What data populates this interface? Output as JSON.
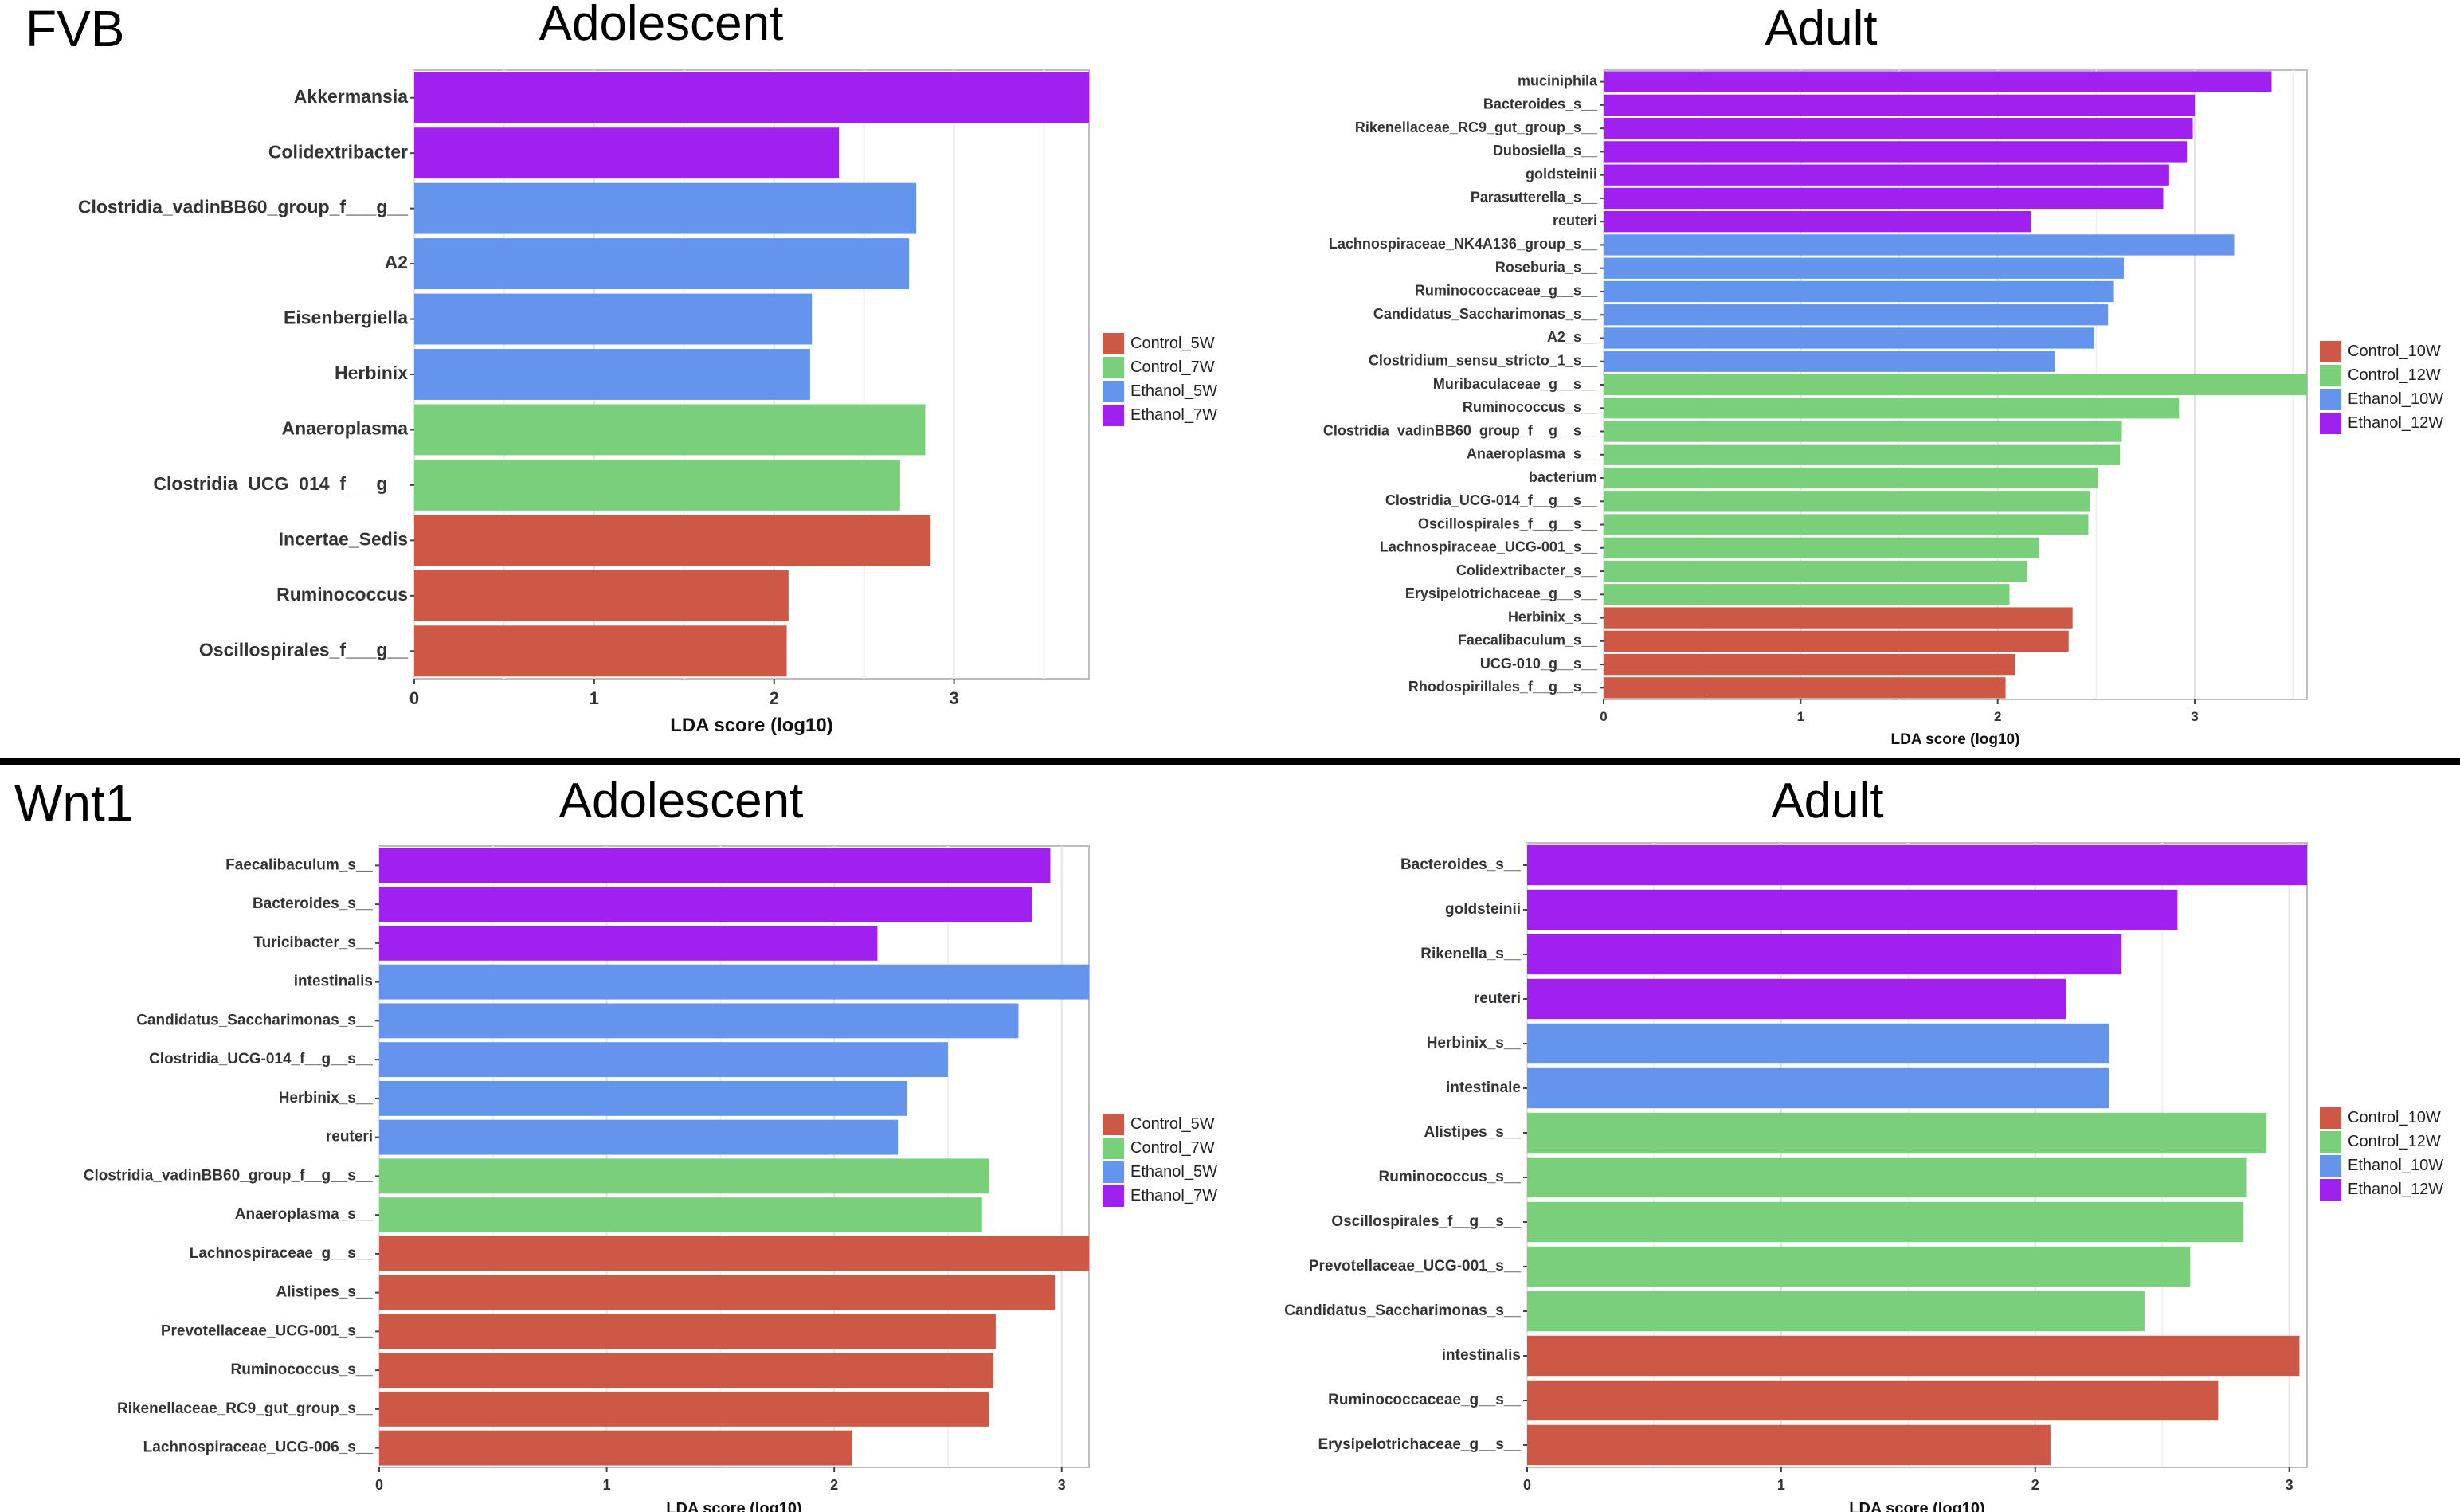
{
  "figure": {
    "groups": [
      {
        "label": "FVB"
      },
      {
        "label": "Wnt1"
      }
    ]
  },
  "chart_data": [
    {
      "type": "bar",
      "orientation": "horizontal",
      "group": "FVB",
      "title": "Adolescent",
      "xlabel": "LDA score (log10)",
      "xlim": [
        0,
        3.75
      ],
      "xticks": [
        "0",
        "1",
        "2",
        "3"
      ],
      "legend": {
        "placement": "right",
        "entries": [
          {
            "name": "Control_5W",
            "color": "#cd5845"
          },
          {
            "name": "Control_7W",
            "color": "#7acf7a"
          },
          {
            "name": "Ethanol_5W",
            "color": "#6495ed"
          },
          {
            "name": "Ethanol_7W",
            "color": "#a020f0"
          }
        ]
      },
      "bars": [
        {
          "label": "Akkermansia",
          "value": 3.75,
          "group": "Ethanol_7W"
        },
        {
          "label": "Colidextribacter",
          "value": 2.36,
          "group": "Ethanol_7W"
        },
        {
          "label": "Clostridia_vadinBB60_group_f___g__",
          "value": 2.79,
          "group": "Ethanol_5W"
        },
        {
          "label": "A2",
          "value": 2.75,
          "group": "Ethanol_5W"
        },
        {
          "label": "Eisenbergiella",
          "value": 2.21,
          "group": "Ethanol_5W"
        },
        {
          "label": "Herbinix",
          "value": 2.2,
          "group": "Ethanol_5W"
        },
        {
          "label": "Anaeroplasma",
          "value": 2.84,
          "group": "Control_7W"
        },
        {
          "label": "Clostridia_UCG_014_f___g__",
          "value": 2.7,
          "group": "Control_7W"
        },
        {
          "label": "Incertae_Sedis",
          "value": 2.87,
          "group": "Control_5W"
        },
        {
          "label": "Ruminococcus",
          "value": 2.08,
          "group": "Control_5W"
        },
        {
          "label": "Oscillospirales_f___g__",
          "value": 2.07,
          "group": "Control_5W"
        }
      ]
    },
    {
      "type": "bar",
      "orientation": "horizontal",
      "group": "FVB",
      "title": "Adult",
      "xlabel": "LDA score (log10)",
      "xlim": [
        0,
        3.57
      ],
      "xticks": [
        "0",
        "1",
        "2",
        "3"
      ],
      "legend": {
        "placement": "right",
        "entries": [
          {
            "name": "Control_10W",
            "color": "#cd5845"
          },
          {
            "name": "Control_12W",
            "color": "#7acf7a"
          },
          {
            "name": "Ethanol_10W",
            "color": "#6495ed"
          },
          {
            "name": "Ethanol_12W",
            "color": "#a020f0"
          }
        ]
      },
      "bars": [
        {
          "label": "muciniphila",
          "value": 3.39,
          "group": "Ethanol_12W"
        },
        {
          "label": "Bacteroides_s__",
          "value": 3.0,
          "group": "Ethanol_12W"
        },
        {
          "label": "Rikenellaceae_RC9_gut_group_s__",
          "value": 2.99,
          "group": "Ethanol_12W"
        },
        {
          "label": "Dubosiella_s__",
          "value": 2.96,
          "group": "Ethanol_12W"
        },
        {
          "label": "goldsteinii",
          "value": 2.87,
          "group": "Ethanol_12W"
        },
        {
          "label": "Parasutterella_s__",
          "value": 2.84,
          "group": "Ethanol_12W"
        },
        {
          "label": "reuteri",
          "value": 2.17,
          "group": "Ethanol_12W"
        },
        {
          "label": "Lachnospiraceae_NK4A136_group_s__",
          "value": 3.2,
          "group": "Ethanol_10W"
        },
        {
          "label": "Roseburia_s__",
          "value": 2.64,
          "group": "Ethanol_10W"
        },
        {
          "label": "Ruminococcaceae_g__s__",
          "value": 2.59,
          "group": "Ethanol_10W"
        },
        {
          "label": "Candidatus_Saccharimonas_s__",
          "value": 2.56,
          "group": "Ethanol_10W"
        },
        {
          "label": "A2_s__",
          "value": 2.49,
          "group": "Ethanol_10W"
        },
        {
          "label": "Clostridium_sensu_stricto_1_s__",
          "value": 2.29,
          "group": "Ethanol_10W"
        },
        {
          "label": "Muribaculaceae_g__s__",
          "value": 3.57,
          "group": "Control_12W"
        },
        {
          "label": "Ruminococcus_s__",
          "value": 2.92,
          "group": "Control_12W"
        },
        {
          "label": "Clostridia_vadinBB60_group_f__g__s__",
          "value": 2.63,
          "group": "Control_12W"
        },
        {
          "label": "Anaeroplasma_s__",
          "value": 2.62,
          "group": "Control_12W"
        },
        {
          "label": "bacterium",
          "value": 2.51,
          "group": "Control_12W"
        },
        {
          "label": "Clostridia_UCG-014_f__g__s__",
          "value": 2.47,
          "group": "Control_12W"
        },
        {
          "label": "Oscillospirales_f__g__s__",
          "value": 2.46,
          "group": "Control_12W"
        },
        {
          "label": "Lachnospiraceae_UCG-001_s__",
          "value": 2.21,
          "group": "Control_12W"
        },
        {
          "label": "Colidextribacter_s__",
          "value": 2.15,
          "group": "Control_12W"
        },
        {
          "label": "Erysipelotrichaceae_g__s__",
          "value": 2.06,
          "group": "Control_12W"
        },
        {
          "label": "Herbinix_s__",
          "value": 2.38,
          "group": "Control_10W"
        },
        {
          "label": "Faecalibaculum_s__",
          "value": 2.36,
          "group": "Control_10W"
        },
        {
          "label": "UCG-010_g__s__",
          "value": 2.09,
          "group": "Control_10W"
        },
        {
          "label": "Rhodospirillales_f__g__s__",
          "value": 2.04,
          "group": "Control_10W"
        }
      ]
    },
    {
      "type": "bar",
      "orientation": "horizontal",
      "group": "Wnt1",
      "title": "Adolescent",
      "xlabel": "LDA score (log10)",
      "xlim": [
        0,
        3.12
      ],
      "xticks": [
        "0",
        "1",
        "2",
        "3"
      ],
      "legend": {
        "placement": "right",
        "entries": [
          {
            "name": "Control_5W",
            "color": "#cd5845"
          },
          {
            "name": "Control_7W",
            "color": "#7acf7a"
          },
          {
            "name": "Ethanol_5W",
            "color": "#6495ed"
          },
          {
            "name": "Ethanol_7W",
            "color": "#a020f0"
          }
        ]
      },
      "bars": [
        {
          "label": "Faecalibaculum_s__",
          "value": 2.95,
          "group": "Ethanol_7W"
        },
        {
          "label": "Bacteroides_s__",
          "value": 2.87,
          "group": "Ethanol_7W"
        },
        {
          "label": "Turicibacter_s__",
          "value": 2.19,
          "group": "Ethanol_7W"
        },
        {
          "label": "intestinalis",
          "value": 3.12,
          "group": "Ethanol_5W"
        },
        {
          "label": "Candidatus_Saccharimonas_s__",
          "value": 2.81,
          "group": "Ethanol_5W"
        },
        {
          "label": "Clostridia_UCG-014_f__g__s__",
          "value": 2.5,
          "group": "Ethanol_5W"
        },
        {
          "label": "Herbinix_s__",
          "value": 2.32,
          "group": "Ethanol_5W"
        },
        {
          "label": "reuteri",
          "value": 2.28,
          "group": "Ethanol_5W"
        },
        {
          "label": "Clostridia_vadinBB60_group_f__g__s__",
          "value": 2.68,
          "group": "Control_7W"
        },
        {
          "label": "Anaeroplasma_s__",
          "value": 2.65,
          "group": "Control_7W"
        },
        {
          "label": "Lachnospiraceae_g__s__",
          "value": 3.12,
          "group": "Control_5W"
        },
        {
          "label": "Alistipes_s__",
          "value": 2.97,
          "group": "Control_5W"
        },
        {
          "label": "Prevotellaceae_UCG-001_s__",
          "value": 2.71,
          "group": "Control_5W"
        },
        {
          "label": "Ruminococcus_s__",
          "value": 2.7,
          "group": "Control_5W"
        },
        {
          "label": "Rikenellaceae_RC9_gut_group_s__",
          "value": 2.68,
          "group": "Control_5W"
        },
        {
          "label": "Lachnospiraceae_UCG-006_s__",
          "value": 2.08,
          "group": "Control_5W"
        }
      ]
    },
    {
      "type": "bar",
      "orientation": "horizontal",
      "group": "Wnt1",
      "title": "Adult",
      "xlabel": "LDA score (log10)",
      "xlim": [
        0,
        3.07
      ],
      "xticks": [
        "0",
        "1",
        "2",
        "3"
      ],
      "legend": {
        "placement": "right",
        "entries": [
          {
            "name": "Control_10W",
            "color": "#cd5845"
          },
          {
            "name": "Control_12W",
            "color": "#7acf7a"
          },
          {
            "name": "Ethanol_10W",
            "color": "#6495ed"
          },
          {
            "name": "Ethanol_12W",
            "color": "#a020f0"
          }
        ]
      },
      "bars": [
        {
          "label": "Bacteroides_s__",
          "value": 3.07,
          "group": "Ethanol_12W"
        },
        {
          "label": "goldsteinii",
          "value": 2.56,
          "group": "Ethanol_12W"
        },
        {
          "label": "Rikenella_s__",
          "value": 2.34,
          "group": "Ethanol_12W"
        },
        {
          "label": "reuteri",
          "value": 2.12,
          "group": "Ethanol_12W"
        },
        {
          "label": "Herbinix_s__",
          "value": 2.29,
          "group": "Ethanol_10W"
        },
        {
          "label": "intestinale",
          "value": 2.29,
          "group": "Ethanol_10W"
        },
        {
          "label": "Alistipes_s__",
          "value": 2.91,
          "group": "Control_12W"
        },
        {
          "label": "Ruminococcus_s__",
          "value": 2.83,
          "group": "Control_12W"
        },
        {
          "label": "Oscillospirales_f__g__s__",
          "value": 2.82,
          "group": "Control_12W"
        },
        {
          "label": "Prevotellaceae_UCG-001_s__",
          "value": 2.61,
          "group": "Control_12W"
        },
        {
          "label": "Candidatus_Saccharimonas_s__",
          "value": 2.43,
          "group": "Control_12W"
        },
        {
          "label": "intestinalis",
          "value": 3.04,
          "group": "Control_10W"
        },
        {
          "label": "Ruminococcaceae_g__s__",
          "value": 2.72,
          "group": "Control_10W"
        },
        {
          "label": "Erysipelotrichaceae_g__s__",
          "value": 2.06,
          "group": "Control_10W"
        }
      ]
    }
  ]
}
